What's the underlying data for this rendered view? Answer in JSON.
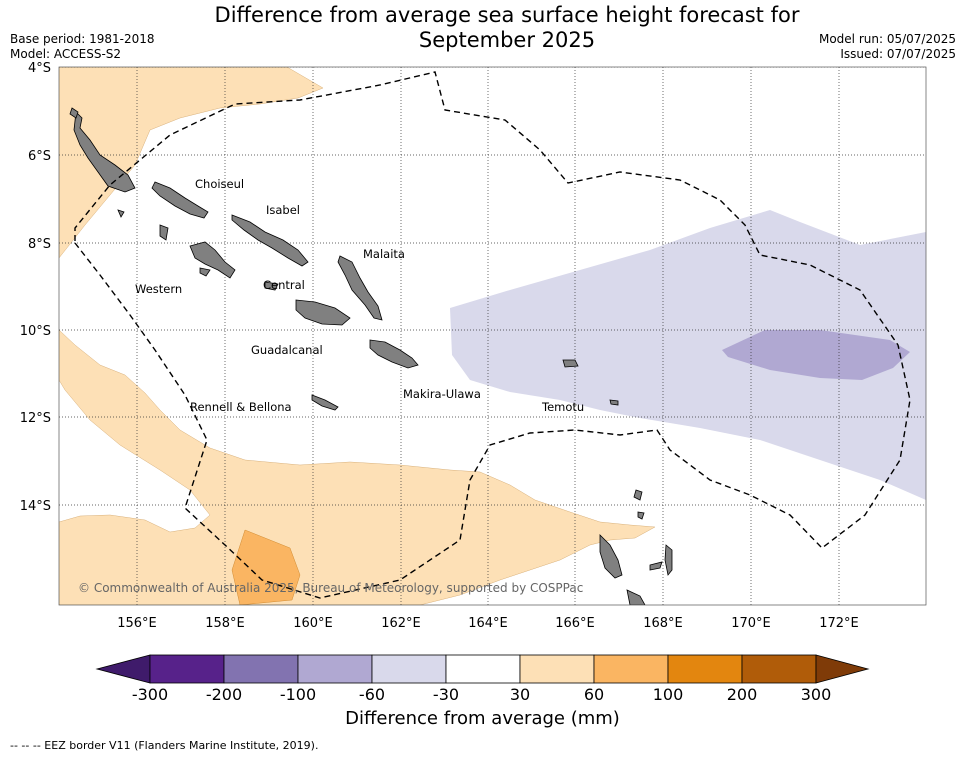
{
  "title": {
    "line1": "Difference from average sea surface height forecast for",
    "line2": "September 2025"
  },
  "meta_left": {
    "base_period": "Base period: 1981-2018",
    "model": "Model: ACCESS-S2"
  },
  "meta_right": {
    "model_run": "Model run: 05/07/2025",
    "issued": "Issued: 07/07/2025"
  },
  "map": {
    "lon_ticks": [
      "156°E",
      "158°E",
      "160°E",
      "162°E",
      "164°E",
      "166°E",
      "168°E",
      "170°E",
      "172°E"
    ],
    "lat_ticks": [
      "4°S",
      "6°S",
      "8°S",
      "10°S",
      "12°S",
      "14°S"
    ],
    "grid": true,
    "land_color": "#808080",
    "eez_line_color": "#000000",
    "region_labels": [
      "Choiseul",
      "Isabel",
      "Malaita",
      "Western",
      "Central",
      "Guadalcanal",
      "Makira-Ulawa",
      "Rennell & Bellona",
      "Temotu"
    ],
    "copyright": "© Commonwealth of Australia 2025, Bureau of Meteorology, supported by COSPPac"
  },
  "colorbar": {
    "ticks": [
      "-300",
      "-200",
      "-100",
      "-60",
      "-30",
      "30",
      "60",
      "100",
      "200",
      "300"
    ],
    "colors": [
      "#3f1b6b",
      "#57228a",
      "#8273b0",
      "#b0a8d2",
      "#d9d9eb",
      "#ffffff",
      "#fde0b6",
      "#fab562",
      "#e3860f",
      "#b05c09",
      "#7f3b08"
    ],
    "label": "Difference from average (mm)"
  },
  "footer": "--  --  -- EEZ border V11 (Flanders Marine Institute, 2019)."
}
